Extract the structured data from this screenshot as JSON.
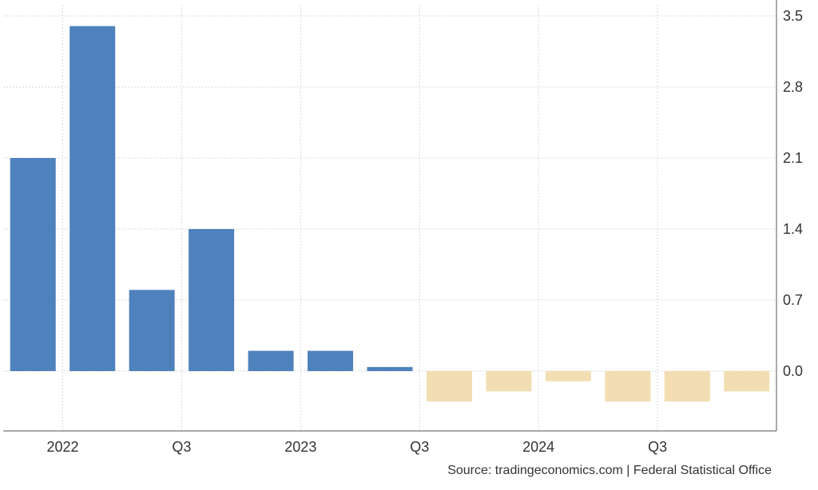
{
  "chart_data": {
    "type": "bar",
    "categories": [
      "2021 Q4",
      "2022 Q1",
      "2022 Q2",
      "2022 Q3",
      "2022 Q4",
      "2023 Q1",
      "2023 Q2",
      "2023 Q3",
      "2023 Q4",
      "2024 Q1",
      "2024 Q2",
      "2024 Q3",
      "2024 Q4"
    ],
    "values": [
      2.1,
      3.4,
      0.8,
      1.4,
      0.2,
      0.2,
      0.04,
      -0.3,
      -0.2,
      -0.1,
      -0.3,
      -0.3,
      -0.2
    ],
    "ylim": [
      -0.6,
      3.5
    ],
    "y_ticks": [
      "0.0",
      "0.7",
      "1.4",
      "2.1",
      "2.8",
      "3.5"
    ],
    "x_tick_labels": [
      {
        "label": "2022",
        "at": 1
      },
      {
        "label": "Q3",
        "at": 3
      },
      {
        "label": "2023",
        "at": 5
      },
      {
        "label": "Q3",
        "at": 7
      },
      {
        "label": "2024",
        "at": 9
      },
      {
        "label": "Q3",
        "at": 11
      }
    ],
    "grid": true,
    "y_axis_side": "right",
    "colors": {
      "positive": "#4f81bd",
      "negative": "#f2deb2",
      "grid": "#d9d9d9",
      "axis": "#555555"
    }
  },
  "source": "Source: tradingeconomics.com | Federal Statistical Office"
}
